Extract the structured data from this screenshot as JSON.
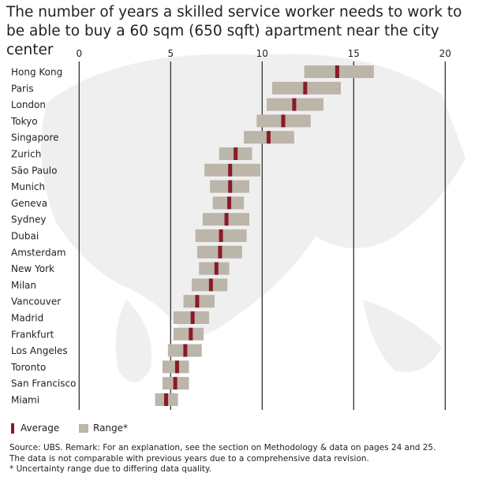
{
  "chart_data": {
    "type": "range-bar",
    "title": "The number of years a skilled service worker needs to work to be able to buy a 60 sqm (650 sqft) apartment near the city center",
    "xlim": [
      0,
      20
    ],
    "xticks": [
      0,
      5,
      10,
      15,
      20
    ],
    "grid": true,
    "legend": {
      "placement": "bottom-left",
      "entries": [
        "Average",
        "Range*"
      ]
    },
    "colors": {
      "average": "#8b1a26",
      "range": "#bbb5aa",
      "map": "#efefef"
    },
    "categories": [
      "Hong Kong",
      "Paris",
      "London",
      "Tokyo",
      "Singapore",
      "Zurich",
      "São Paulo",
      "Munich",
      "Geneva",
      "Sydney",
      "Dubai",
      "Amsterdam",
      "New York",
      "Milan",
      "Vancouver",
      "Madrid",
      "Frankfurt",
      "Los Angeles",
      "Toronto",
      "San Francisco",
      "Miami"
    ],
    "series": [
      {
        "name": "Average",
        "values": [
          14.1,
          12.35,
          11.75,
          11.15,
          10.35,
          8.55,
          8.25,
          8.25,
          8.2,
          8.05,
          7.75,
          7.7,
          7.5,
          7.2,
          6.45,
          6.2,
          6.1,
          5.8,
          5.35,
          5.25,
          4.75
        ]
      },
      {
        "name": "Range*",
        "min": [
          12.3,
          10.55,
          10.25,
          9.7,
          9.0,
          7.65,
          6.85,
          7.15,
          7.3,
          6.75,
          6.35,
          6.45,
          6.55,
          6.15,
          5.7,
          5.15,
          5.15,
          4.85,
          4.55,
          4.55,
          4.15
        ],
        "max": [
          16.1,
          14.3,
          13.35,
          12.65,
          11.75,
          9.45,
          9.9,
          9.3,
          9.0,
          9.3,
          9.15,
          8.9,
          8.2,
          8.1,
          7.4,
          7.1,
          6.8,
          6.7,
          6.0,
          6.0,
          5.4
        ]
      }
    ]
  },
  "legend": {
    "average": "Average",
    "range": "Range*"
  },
  "notes": [
    "Source: UBS. Remark: For an explanation, see the section on Methodology & data on pages 24 and 25.",
    "The data is not comparable with previous years due to a comprehensive data revision.",
    "* Uncertainty range due to differing data quality."
  ]
}
